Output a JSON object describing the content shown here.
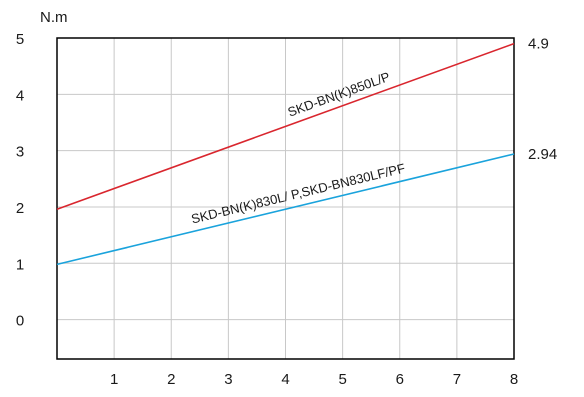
{
  "chart_data": {
    "type": "line",
    "title": "",
    "xlabel": "",
    "ylabel": "N.m",
    "xlim": [
      0,
      8
    ],
    "ylim": [
      -0.7,
      5
    ],
    "x_ticks": [
      "1",
      "2",
      "3",
      "4",
      "5",
      "6",
      "7",
      "8"
    ],
    "y_ticks": [
      "0",
      "1",
      "2",
      "3",
      "4",
      "5"
    ],
    "grid": true,
    "series": [
      {
        "name": "SKD-BN(K)850L/P",
        "color": "#d9262e",
        "x": [
          0,
          8
        ],
        "y": [
          1.96,
          4.9
        ],
        "end_label": "4.9"
      },
      {
        "name": "SKD-BN(K)830L/ P,SKD-BN830LF/PF",
        "color": "#1aa3dc",
        "x": [
          0,
          8
        ],
        "y": [
          0.98,
          2.94
        ],
        "end_label": "2.94"
      }
    ]
  }
}
